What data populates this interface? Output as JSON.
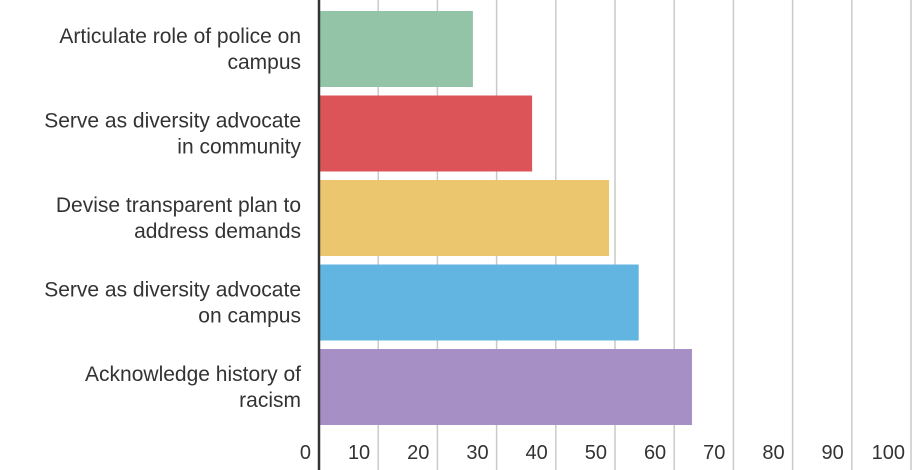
{
  "chart_data": {
    "type": "bar",
    "orientation": "horizontal",
    "title": "",
    "xlabel": "",
    "ylabel": "",
    "categories": [
      [
        "Articulate role of police on",
        "campus"
      ],
      [
        "Serve as diversity advocate",
        "in community"
      ],
      [
        "Devise transparent plan to",
        "address demands"
      ],
      [
        "Serve as diversity advocate",
        "on campus"
      ],
      [
        "Acknowledge history of",
        "racism"
      ]
    ],
    "values": [
      26,
      36,
      49,
      54,
      63
    ],
    "colors": [
      "#93c4a8",
      "#dd5458",
      "#ecc66e",
      "#62b4e1",
      "#a68fc4"
    ],
    "xlim": [
      0,
      100
    ],
    "xticks": [
      "0",
      "10",
      "20",
      "30",
      "40",
      "50",
      "60",
      "70",
      "80",
      "90",
      "100"
    ],
    "grid": true,
    "legend": "none"
  }
}
